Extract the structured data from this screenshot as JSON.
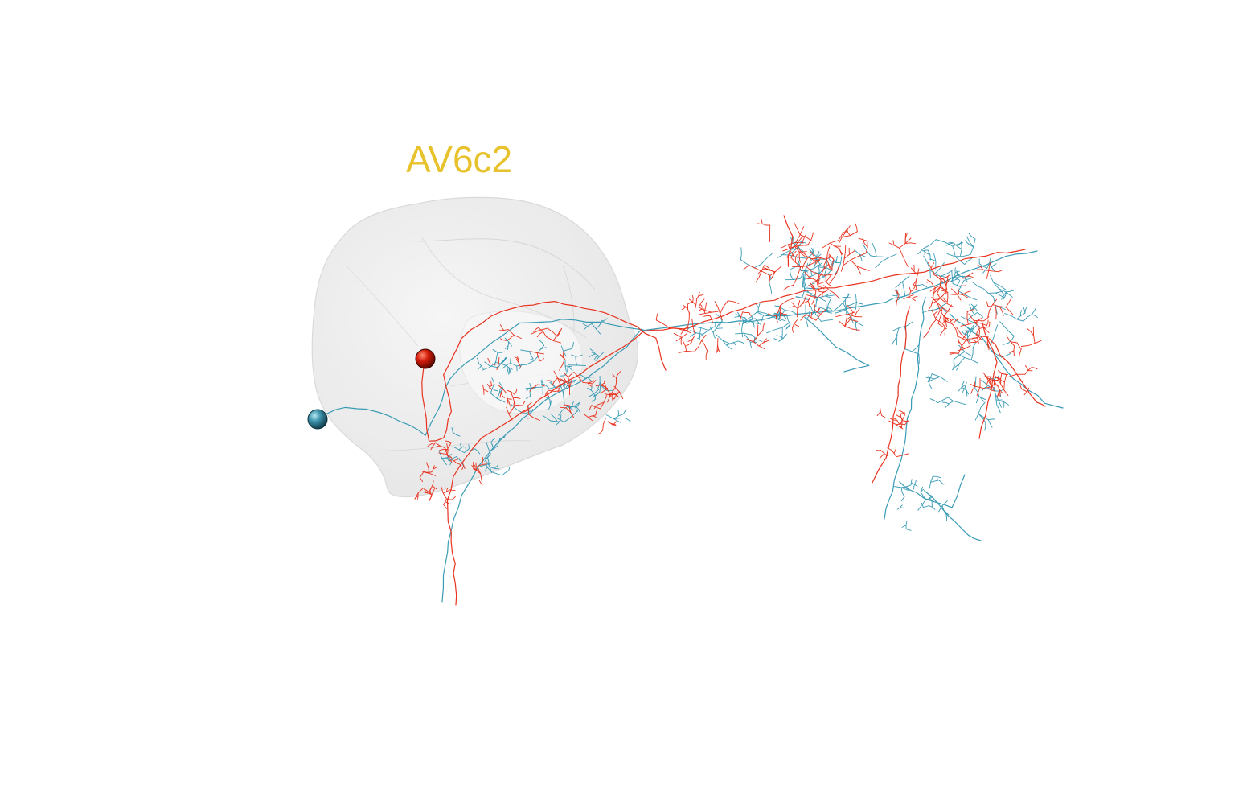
{
  "label": {
    "text": "AV6c2",
    "color": "#e8c22c"
  },
  "mesh": {
    "fill": "#ececec",
    "stroke": "#dcdcdc"
  },
  "neurons": [
    {
      "name": "red",
      "color": "#e8321e",
      "soma_color": "#c91a08"
    },
    {
      "name": "cyan",
      "color": "#3a9bb5",
      "soma_color": "#2f7f97"
    }
  ]
}
